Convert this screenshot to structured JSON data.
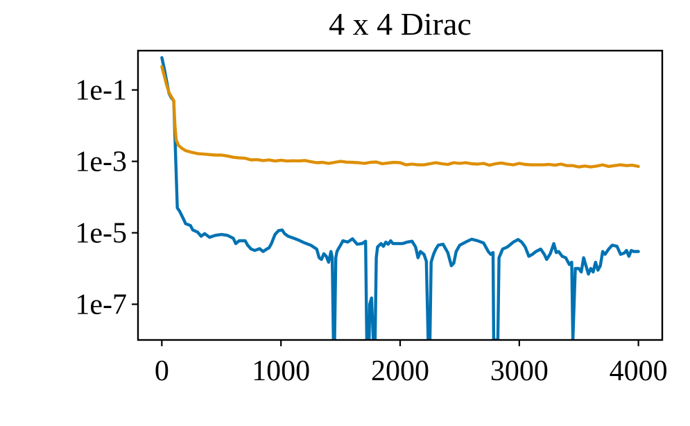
{
  "chart_data": {
    "type": "line",
    "title": "4 x 4 Dirac",
    "xlabel": "",
    "ylabel": "",
    "xlim": [
      -200,
      4200
    ],
    "ylim_log10": [
      -8,
      0.1
    ],
    "yscale": "log",
    "grid": false,
    "legend": "none",
    "x_ticks": [
      0,
      1000,
      2000,
      3000,
      4000
    ],
    "x_tick_labels": [
      "0",
      "1000",
      "2000",
      "3000",
      "4000"
    ],
    "y_ticks_log10": [
      -1,
      -3,
      -5,
      -7
    ],
    "y_tick_labels": [
      "1e-1",
      "1e-3",
      "1e-5",
      "1e-7"
    ],
    "series": [
      {
        "color": "#0072b2",
        "points": [
          [
            0,
            0.8
          ],
          [
            20,
            0.4
          ],
          [
            40,
            0.18
          ],
          [
            60,
            0.08
          ],
          [
            80,
            0.06
          ],
          [
            100,
            0.05
          ],
          [
            110,
            0.005
          ],
          [
            120,
            0.0005
          ],
          [
            130,
            5e-05
          ],
          [
            150,
            4e-05
          ],
          [
            180,
            2.5e-05
          ],
          [
            200,
            1.8e-05
          ],
          [
            240,
            1.6e-05
          ],
          [
            260,
            1.2e-05
          ],
          [
            300,
            1.05e-05
          ],
          [
            330,
            8e-06
          ],
          [
            360,
            9.5e-06
          ],
          [
            400,
            7.5e-06
          ],
          [
            450,
            8.5e-06
          ],
          [
            500,
            9e-06
          ],
          [
            550,
            8.5e-06
          ],
          [
            600,
            7e-06
          ],
          [
            620,
            5e-06
          ],
          [
            650,
            6e-06
          ],
          [
            700,
            6e-06
          ],
          [
            720,
            4.5e-06
          ],
          [
            750,
            3.5e-06
          ],
          [
            780,
            3.2e-06
          ],
          [
            820,
            3.6e-06
          ],
          [
            850,
            3e-06
          ],
          [
            880,
            3.5e-06
          ],
          [
            900,
            3.8e-06
          ],
          [
            920,
            5e-06
          ],
          [
            950,
            9e-06
          ],
          [
            980,
            1.15e-05
          ],
          [
            1010,
            1.2e-05
          ],
          [
            1030,
            9.5e-06
          ],
          [
            1060,
            8e-06
          ],
          [
            1100,
            7.2e-06
          ],
          [
            1150,
            6.2e-06
          ],
          [
            1200,
            5.2e-06
          ],
          [
            1250,
            4.5e-06
          ],
          [
            1300,
            3.5e-06
          ],
          [
            1320,
            2e-06
          ],
          [
            1340,
            1.8e-06
          ],
          [
            1360,
            2.6e-06
          ],
          [
            1380,
            2.2e-06
          ],
          [
            1400,
            1.5e-06
          ],
          [
            1420,
            3e-06
          ],
          [
            1430,
            2e-06
          ],
          [
            1440,
            1e-08
          ],
          [
            1450,
            1e-08
          ],
          [
            1460,
            2e-06
          ],
          [
            1470,
            3e-06
          ],
          [
            1480,
            3.5e-06
          ],
          [
            1500,
            4.5e-06
          ],
          [
            1520,
            6e-06
          ],
          [
            1560,
            5.5e-06
          ],
          [
            1600,
            6.8e-06
          ],
          [
            1640,
            4.8e-06
          ],
          [
            1680,
            5e-06
          ],
          [
            1710,
            5.8e-06
          ],
          [
            1720,
            1e-08
          ],
          [
            1740,
            1e-08
          ],
          [
            1745,
            1e-07
          ],
          [
            1760,
            1.5e-07
          ],
          [
            1775,
            1e-08
          ],
          [
            1790,
            1e-08
          ],
          [
            1800,
            2e-06
          ],
          [
            1810,
            4e-06
          ],
          [
            1840,
            5e-06
          ],
          [
            1860,
            4.2e-06
          ],
          [
            1880,
            5.5e-06
          ],
          [
            1900,
            4.8e-06
          ],
          [
            1920,
            6e-06
          ],
          [
            1940,
            5e-06
          ],
          [
            1980,
            5e-06
          ],
          [
            2020,
            5e-06
          ],
          [
            2060,
            5.5e-06
          ],
          [
            2100,
            5.8e-06
          ],
          [
            2130,
            4e-06
          ],
          [
            2150,
            2e-06
          ],
          [
            2170,
            3e-06
          ],
          [
            2200,
            2.5e-06
          ],
          [
            2220,
            1.6e-06
          ],
          [
            2235,
            1e-08
          ],
          [
            2250,
            1e-08
          ],
          [
            2260,
            1.5e-06
          ],
          [
            2280,
            2.5e-06
          ],
          [
            2300,
            3.5e-06
          ],
          [
            2320,
            4.5e-06
          ],
          [
            2360,
            4.8e-06
          ],
          [
            2400,
            2.8e-06
          ],
          [
            2430,
            1.2e-06
          ],
          [
            2450,
            1.4e-06
          ],
          [
            2470,
            3e-06
          ],
          [
            2500,
            4.5e-06
          ],
          [
            2550,
            5.5e-06
          ],
          [
            2600,
            6.6e-06
          ],
          [
            2650,
            6e-06
          ],
          [
            2700,
            5.2e-06
          ],
          [
            2740,
            3e-06
          ],
          [
            2760,
            2.5e-06
          ],
          [
            2780,
            2.8e-06
          ],
          [
            2785,
            1e-08
          ],
          [
            2800,
            1e-08
          ],
          [
            2815,
            1e-08
          ],
          [
            2820,
            1e-08
          ],
          [
            2830,
            2e-06
          ],
          [
            2860,
            3.5e-06
          ],
          [
            2900,
            4e-06
          ],
          [
            2950,
            5.5e-06
          ],
          [
            2990,
            6.5e-06
          ],
          [
            3020,
            5.5e-06
          ],
          [
            3050,
            4e-06
          ],
          [
            3080,
            2.2e-06
          ],
          [
            3110,
            2.5e-06
          ],
          [
            3140,
            3e-06
          ],
          [
            3180,
            3.5e-06
          ],
          [
            3210,
            2.5e-06
          ],
          [
            3230,
            1.8e-06
          ],
          [
            3260,
            2.6e-06
          ],
          [
            3290,
            5e-06
          ],
          [
            3310,
            2.8e-06
          ],
          [
            3330,
            3e-06
          ],
          [
            3360,
            2.2e-06
          ],
          [
            3390,
            2e-06
          ],
          [
            3420,
            1.3e-06
          ],
          [
            3440,
            1.5e-06
          ],
          [
            3450,
            1e-08
          ],
          [
            3470,
            1e-06
          ],
          [
            3500,
            1e-06
          ],
          [
            3520,
            8e-07
          ],
          [
            3540,
            2e-06
          ],
          [
            3560,
            1.2e-06
          ],
          [
            3580,
            7e-07
          ],
          [
            3600,
            1e-06
          ],
          [
            3620,
            8e-07
          ],
          [
            3640,
            1.5e-06
          ],
          [
            3660,
            9e-07
          ],
          [
            3680,
            1.2e-06
          ],
          [
            3700,
            3e-06
          ],
          [
            3720,
            2.5e-06
          ],
          [
            3750,
            3.5e-06
          ],
          [
            3780,
            4.5e-06
          ],
          [
            3820,
            4.2e-06
          ],
          [
            3850,
            2.5e-06
          ],
          [
            3880,
            2.7e-06
          ],
          [
            3900,
            3.2e-06
          ],
          [
            3920,
            2.2e-06
          ],
          [
            3940,
            3.2e-06
          ],
          [
            3960,
            3e-06
          ],
          [
            4000,
            3e-06
          ]
        ]
      },
      {
        "color": "#de8f05",
        "points": [
          [
            0,
            0.45
          ],
          [
            20,
            0.25
          ],
          [
            40,
            0.14
          ],
          [
            60,
            0.085
          ],
          [
            80,
            0.065
          ],
          [
            100,
            0.05
          ],
          [
            110,
            0.01
          ],
          [
            120,
            0.004
          ],
          [
            140,
            0.0028
          ],
          [
            170,
            0.0023
          ],
          [
            200,
            0.002
          ],
          [
            250,
            0.0018
          ],
          [
            300,
            0.00165
          ],
          [
            350,
            0.0016
          ],
          [
            400,
            0.00155
          ],
          [
            450,
            0.0015
          ],
          [
            500,
            0.0015
          ],
          [
            550,
            0.00142
          ],
          [
            600,
            0.0013
          ],
          [
            650,
            0.00125
          ],
          [
            700,
            0.00122
          ],
          [
            750,
            0.0011
          ],
          [
            800,
            0.00112
          ],
          [
            850,
            0.00105
          ],
          [
            900,
            0.0011
          ],
          [
            950,
            0.00102
          ],
          [
            1000,
            0.00108
          ],
          [
            1050,
            0.00102
          ],
          [
            1100,
            0.00104
          ],
          [
            1150,
            0.00103
          ],
          [
            1200,
            0.00106
          ],
          [
            1250,
            0.00098
          ],
          [
            1300,
            0.00092
          ],
          [
            1350,
            0.00094
          ],
          [
            1400,
            0.00088
          ],
          [
            1450,
            0.00094
          ],
          [
            1500,
            0.001
          ],
          [
            1550,
            0.00095
          ],
          [
            1600,
            0.00094
          ],
          [
            1650,
            0.00092
          ],
          [
            1700,
            0.00088
          ],
          [
            1750,
            0.00094
          ],
          [
            1800,
            0.00096
          ],
          [
            1850,
            0.00086
          ],
          [
            1900,
            0.0009
          ],
          [
            1950,
            0.00094
          ],
          [
            2000,
            0.00092
          ],
          [
            2050,
            0.0008
          ],
          [
            2100,
            0.00084
          ],
          [
            2150,
            0.0008
          ],
          [
            2200,
            0.0008
          ],
          [
            2250,
            0.00086
          ],
          [
            2300,
            0.00092
          ],
          [
            2350,
            0.00086
          ],
          [
            2400,
            0.00082
          ],
          [
            2450,
            0.00092
          ],
          [
            2500,
            0.00088
          ],
          [
            2550,
            0.00092
          ],
          [
            2600,
            0.00086
          ],
          [
            2650,
            0.00084
          ],
          [
            2700,
            0.00088
          ],
          [
            2750,
            0.00078
          ],
          [
            2800,
            0.00086
          ],
          [
            2850,
            0.0009
          ],
          [
            2900,
            0.00084
          ],
          [
            2950,
            0.0008
          ],
          [
            3000,
            0.00088
          ],
          [
            3050,
            0.00082
          ],
          [
            3100,
            0.0008
          ],
          [
            3150,
            0.0008
          ],
          [
            3200,
            0.0008
          ],
          [
            3250,
            0.00082
          ],
          [
            3300,
            0.00078
          ],
          [
            3350,
            0.00084
          ],
          [
            3400,
            0.00076
          ],
          [
            3450,
            0.00076
          ],
          [
            3500,
            0.0007
          ],
          [
            3550,
            0.00074
          ],
          [
            3600,
            0.0007
          ],
          [
            3650,
            0.00074
          ],
          [
            3700,
            0.0008
          ],
          [
            3750,
            0.00072
          ],
          [
            3800,
            0.00076
          ],
          [
            3850,
            0.0008
          ],
          [
            3900,
            0.00076
          ],
          [
            3950,
            0.00078
          ],
          [
            4000,
            0.00072
          ]
        ]
      }
    ]
  }
}
